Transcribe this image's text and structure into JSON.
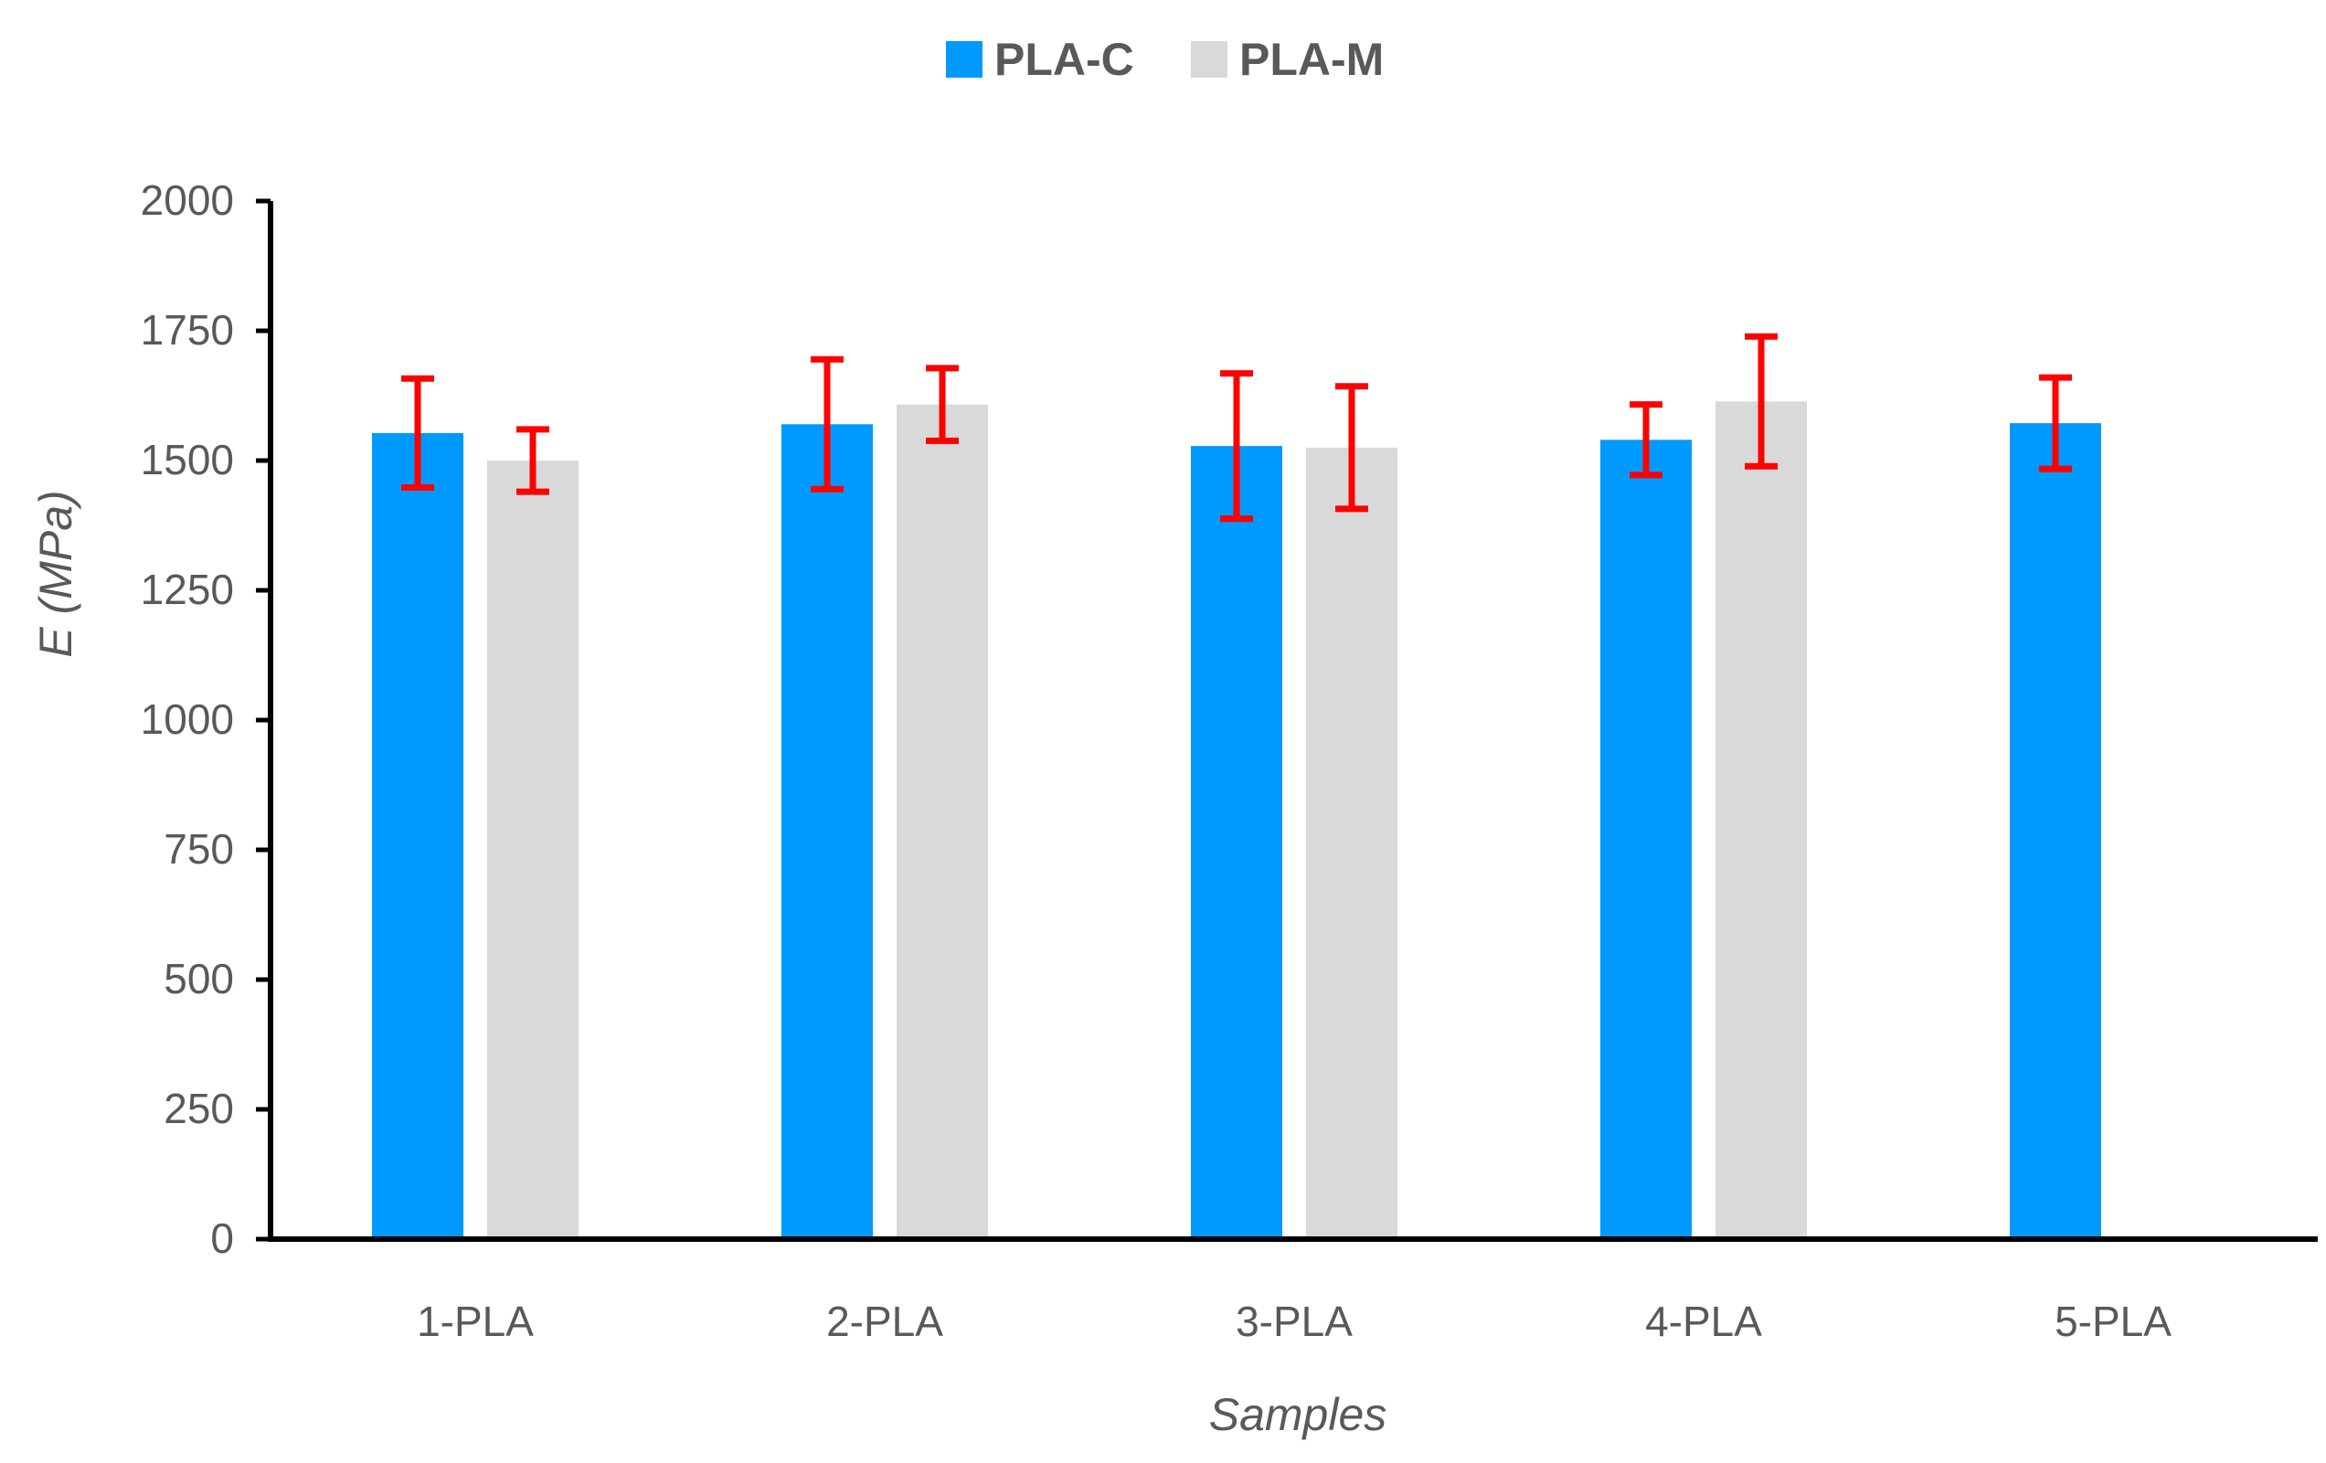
{
  "chart_data": {
    "type": "bar",
    "title": "",
    "xlabel": "Samples",
    "ylabel": "E (MPa)",
    "ylim": [
      0,
      2000
    ],
    "yticks": [
      0,
      250,
      500,
      750,
      1000,
      1250,
      1500,
      1750,
      2000
    ],
    "categories": [
      "1-PLA",
      "2-PLA",
      "3-PLA",
      "4-PLA",
      "5-PLA"
    ],
    "series": [
      {
        "name": "PLA-C",
        "color": "#0099FF",
        "values": [
          1553,
          1570,
          1528,
          1540,
          1572
        ],
        "error": [
          105,
          125,
          140,
          68,
          88
        ]
      },
      {
        "name": "PLA-M",
        "color": "#D9D9D9",
        "values": [
          1500,
          1608,
          1525,
          1614,
          null
        ],
        "error": [
          60,
          70,
          118,
          125,
          null
        ]
      }
    ],
    "error_bar_color": "#FF0000",
    "legend_position": "top-center",
    "grid": false
  }
}
